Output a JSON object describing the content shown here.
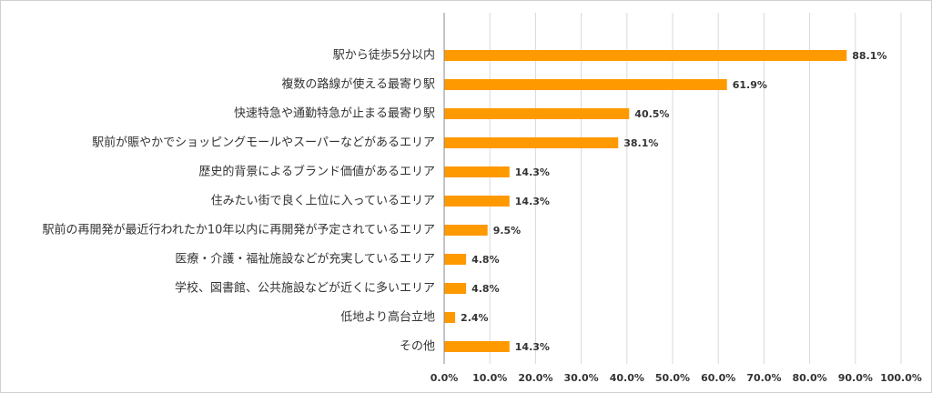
{
  "chart_data": {
    "type": "bar",
    "orientation": "horizontal",
    "categories": [
      "駅から徒歩5分以内",
      "複数の路線が使える最寄り駅",
      "快速特急や通勤特急が止まる最寄り駅",
      "駅前が賑やかでショッピングモールやスーパーなどがあるエリア",
      "歴史的背景によるブランド価値があるエリア",
      "住みたい街で良く上位に入っているエリア",
      "駅前の再開発が最近行われたか10年以内に再開発が予定されているエリア",
      "医療・介護・福祉施設などが充実しているエリア",
      "学校、図書館、公共施設などが近くに多いエリア",
      "低地より高台立地",
      "その他"
    ],
    "values": [
      88.1,
      61.9,
      40.5,
      38.1,
      14.3,
      14.3,
      9.5,
      4.8,
      4.8,
      2.4,
      14.3
    ],
    "value_labels": [
      "88.1%",
      "61.9%",
      "40.5%",
      "38.1%",
      "14.3%",
      "14.3%",
      "9.5%",
      "4.8%",
      "4.8%",
      "2.4%",
      "14.3%"
    ],
    "color": "#ff9900",
    "xlim": [
      0,
      100
    ],
    "xticks": [
      {
        "value": 0,
        "label": "0.0%"
      },
      {
        "value": 10,
        "label": "10.0%"
      },
      {
        "value": 20,
        "label": "20.0%"
      },
      {
        "value": 30,
        "label": "30.0%"
      },
      {
        "value": 40,
        "label": "40.0%"
      },
      {
        "value": 50,
        "label": "50.0%"
      },
      {
        "value": 60,
        "label": "60.0%"
      },
      {
        "value": 70,
        "label": "70.0%"
      },
      {
        "value": 80,
        "label": "80.0%"
      },
      {
        "value": 90,
        "label": "90.0%"
      },
      {
        "value": 100,
        "label": "100.0%"
      }
    ],
    "grid": true
  }
}
